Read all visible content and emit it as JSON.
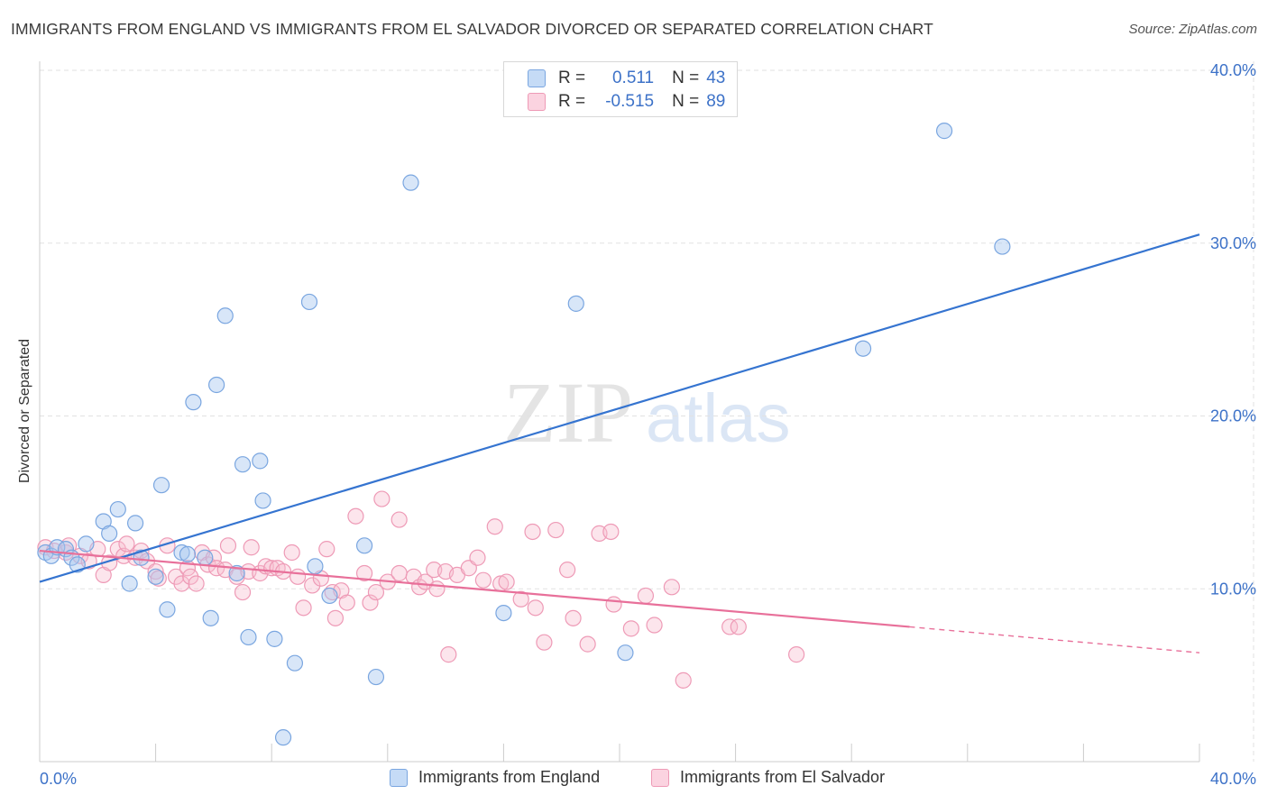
{
  "title": "IMMIGRANTS FROM ENGLAND VS IMMIGRANTS FROM EL SALVADOR DIVORCED OR SEPARATED CORRELATION CHART",
  "source": "Source: ZipAtlas.com",
  "watermark": {
    "zip": "ZIP",
    "atlas": "atlas"
  },
  "colors": {
    "england_fill": "#a9c8f0",
    "england_stroke": "#7aa6e0",
    "england_line": "#3574d0",
    "elsalvador_fill": "#f7bfd0",
    "elsalvador_stroke": "#ee9ab6",
    "elsalvador_line": "#e8709a",
    "axis_text": "#3d72c8",
    "grid": "#e2e2e2"
  },
  "legend_stats": [
    {
      "r_label": "R =",
      "r_value": "0.511",
      "n_label": "N =",
      "n_value": "43",
      "series": "england"
    },
    {
      "r_label": "R =",
      "r_value": "-0.515",
      "n_label": "N =",
      "n_value": "89",
      "series": "elsalvador"
    }
  ],
  "bottom_legend": [
    {
      "label": "Immigrants from England",
      "series": "england"
    },
    {
      "label": "Immigrants from El Salvador",
      "series": "elsalvador"
    }
  ],
  "chart_data": {
    "type": "scatter",
    "title": "IMMIGRANTS FROM ENGLAND VS IMMIGRANTS FROM EL SALVADOR DIVORCED OR SEPARATED CORRELATION CHART",
    "xlabel": "",
    "ylabel": "Divorced or Separated",
    "xlim": [
      0,
      40
    ],
    "ylim": [
      0,
      40
    ],
    "x_ticks": [
      {
        "value": 0,
        "label": "0.0%"
      },
      {
        "value": 40,
        "label": "40.0%"
      }
    ],
    "y_ticks": [
      {
        "value": 10,
        "label": "10.0%"
      },
      {
        "value": 20,
        "label": "20.0%"
      },
      {
        "value": 30,
        "label": "30.0%"
      },
      {
        "value": 40,
        "label": "40.0%"
      }
    ],
    "grid": true,
    "legend_placement": "top-center",
    "series": [
      {
        "name": "Immigrants from England",
        "key": "england",
        "trend": {
          "x": [
            0,
            40
          ],
          "y": [
            10.4,
            30.5
          ]
        },
        "points": [
          [
            0.2,
            12.1
          ],
          [
            0.4,
            11.9
          ],
          [
            0.6,
            12.4
          ],
          [
            0.9,
            12.3
          ],
          [
            1.1,
            11.8
          ],
          [
            1.3,
            11.4
          ],
          [
            1.6,
            12.6
          ],
          [
            2.2,
            13.9
          ],
          [
            2.4,
            13.2
          ],
          [
            2.7,
            14.6
          ],
          [
            3.1,
            10.3
          ],
          [
            3.3,
            13.8
          ],
          [
            3.5,
            11.8
          ],
          [
            4.0,
            10.7
          ],
          [
            4.2,
            16.0
          ],
          [
            4.4,
            8.8
          ],
          [
            4.9,
            12.1
          ],
          [
            5.1,
            12.0
          ],
          [
            5.3,
            20.8
          ],
          [
            5.7,
            11.8
          ],
          [
            5.9,
            8.3
          ],
          [
            6.1,
            21.8
          ],
          [
            6.4,
            25.8
          ],
          [
            6.8,
            10.9
          ],
          [
            7.0,
            17.2
          ],
          [
            7.2,
            7.2
          ],
          [
            7.6,
            17.4
          ],
          [
            7.7,
            15.1
          ],
          [
            8.1,
            7.1
          ],
          [
            8.4,
            1.4
          ],
          [
            8.8,
            5.7
          ],
          [
            9.3,
            26.6
          ],
          [
            9.5,
            11.3
          ],
          [
            10.0,
            9.6
          ],
          [
            11.2,
            12.5
          ],
          [
            11.6,
            4.9
          ],
          [
            12.8,
            33.5
          ],
          [
            16.0,
            8.6
          ],
          [
            18.5,
            26.5
          ],
          [
            20.2,
            6.3
          ],
          [
            28.4,
            23.9
          ],
          [
            31.2,
            36.5
          ],
          [
            33.2,
            29.8
          ]
        ]
      },
      {
        "name": "Immigrants from El Salvador",
        "key": "elsalvador",
        "trend": {
          "x": [
            0,
            30
          ],
          "y": [
            12.2,
            7.8
          ]
        },
        "trend_dashed": {
          "x": [
            30,
            40
          ],
          "y": [
            7.8,
            6.3
          ]
        },
        "points": [
          [
            0.2,
            12.4
          ],
          [
            0.5,
            12.2
          ],
          [
            0.9,
            12.1
          ],
          [
            1.0,
            12.5
          ],
          [
            1.4,
            11.9
          ],
          [
            1.7,
            11.6
          ],
          [
            2.0,
            12.3
          ],
          [
            2.2,
            10.8
          ],
          [
            2.4,
            11.5
          ],
          [
            2.7,
            12.3
          ],
          [
            2.9,
            11.9
          ],
          [
            3.0,
            12.6
          ],
          [
            3.3,
            11.8
          ],
          [
            3.5,
            12.2
          ],
          [
            3.7,
            11.6
          ],
          [
            4.0,
            11.0
          ],
          [
            4.1,
            10.6
          ],
          [
            4.4,
            12.5
          ],
          [
            4.7,
            10.7
          ],
          [
            4.9,
            10.3
          ],
          [
            5.1,
            11.2
          ],
          [
            5.2,
            10.7
          ],
          [
            5.4,
            10.3
          ],
          [
            5.6,
            12.1
          ],
          [
            5.8,
            11.4
          ],
          [
            6.0,
            11.8
          ],
          [
            6.1,
            11.2
          ],
          [
            6.4,
            11.1
          ],
          [
            6.5,
            12.5
          ],
          [
            6.8,
            10.7
          ],
          [
            7.0,
            9.8
          ],
          [
            7.2,
            11.0
          ],
          [
            7.3,
            12.4
          ],
          [
            7.6,
            10.9
          ],
          [
            7.8,
            11.3
          ],
          [
            8.0,
            11.2
          ],
          [
            8.2,
            11.2
          ],
          [
            8.4,
            11.0
          ],
          [
            8.7,
            12.1
          ],
          [
            8.9,
            10.7
          ],
          [
            9.1,
            8.9
          ],
          [
            9.4,
            10.2
          ],
          [
            9.7,
            10.6
          ],
          [
            9.9,
            12.3
          ],
          [
            10.1,
            9.8
          ],
          [
            10.2,
            8.3
          ],
          [
            10.4,
            9.9
          ],
          [
            10.6,
            9.2
          ],
          [
            10.9,
            14.2
          ],
          [
            11.2,
            10.9
          ],
          [
            11.4,
            9.2
          ],
          [
            11.6,
            9.8
          ],
          [
            11.8,
            15.2
          ],
          [
            12.0,
            10.4
          ],
          [
            12.4,
            10.9
          ],
          [
            12.4,
            14.0
          ],
          [
            12.9,
            10.7
          ],
          [
            13.1,
            10.1
          ],
          [
            13.3,
            10.4
          ],
          [
            13.6,
            11.1
          ],
          [
            13.7,
            10.0
          ],
          [
            14.0,
            11.0
          ],
          [
            14.1,
            6.2
          ],
          [
            14.4,
            10.8
          ],
          [
            14.8,
            11.2
          ],
          [
            15.1,
            11.8
          ],
          [
            15.3,
            10.5
          ],
          [
            15.7,
            13.6
          ],
          [
            15.9,
            10.3
          ],
          [
            16.1,
            10.4
          ],
          [
            16.6,
            9.4
          ],
          [
            17.0,
            13.3
          ],
          [
            17.1,
            8.9
          ],
          [
            17.4,
            6.9
          ],
          [
            17.8,
            13.4
          ],
          [
            18.2,
            11.1
          ],
          [
            18.4,
            8.3
          ],
          [
            18.9,
            6.8
          ],
          [
            19.3,
            13.2
          ],
          [
            19.7,
            13.3
          ],
          [
            19.8,
            9.1
          ],
          [
            20.4,
            7.7
          ],
          [
            20.9,
            9.6
          ],
          [
            21.2,
            7.9
          ],
          [
            21.8,
            10.1
          ],
          [
            22.2,
            4.7
          ],
          [
            23.8,
            7.8
          ],
          [
            24.1,
            7.8
          ],
          [
            26.1,
            6.2
          ]
        ]
      }
    ]
  }
}
